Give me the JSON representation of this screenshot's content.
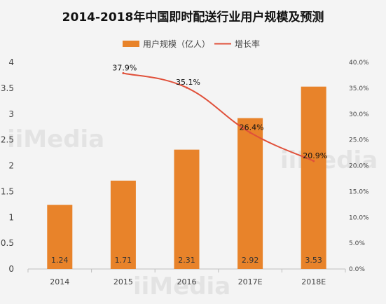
{
  "chart_data": {
    "type": "bar",
    "title": "2014-2018年中国即时配送行业用户规模及预测",
    "categories": [
      "2014",
      "2015",
      "2016",
      "2017E",
      "2018E"
    ],
    "series": [
      {
        "name": "用户规模（亿人）",
        "type": "bar",
        "axis": "left",
        "values": [
          1.24,
          1.71,
          2.31,
          2.92,
          3.53
        ],
        "labels": [
          "1.24",
          "1.71",
          "2.31",
          "2.92",
          "3.53"
        ]
      },
      {
        "name": "增长率",
        "type": "line",
        "axis": "right",
        "values": [
          37.9,
          35.1,
          26.4,
          20.9
        ],
        "x": [
          "2015",
          "2016",
          "2017E",
          "2018E"
        ],
        "labels": [
          "37.9%",
          "35.1%",
          "26.4%",
          "20.9%"
        ]
      }
    ],
    "y_left": {
      "min": 0,
      "max": 4,
      "ticks": [
        "0",
        "0.5",
        "1",
        "1.5",
        "2",
        "2.5",
        "3",
        "3.5",
        "4"
      ]
    },
    "y_right": {
      "min": 0,
      "max": 40,
      "ticks": [
        "0.0%",
        "5.0%",
        "10.0%",
        "15.0%",
        "20.0%",
        "25.0%",
        "30.0%",
        "35.0%",
        "40.0%"
      ]
    },
    "legend_position": "top-center",
    "grid": false,
    "colors": {
      "bar": "#e8832a",
      "line": "#e0503a",
      "axis": "#bfbfbf"
    },
    "watermark": "iiMedia"
  }
}
